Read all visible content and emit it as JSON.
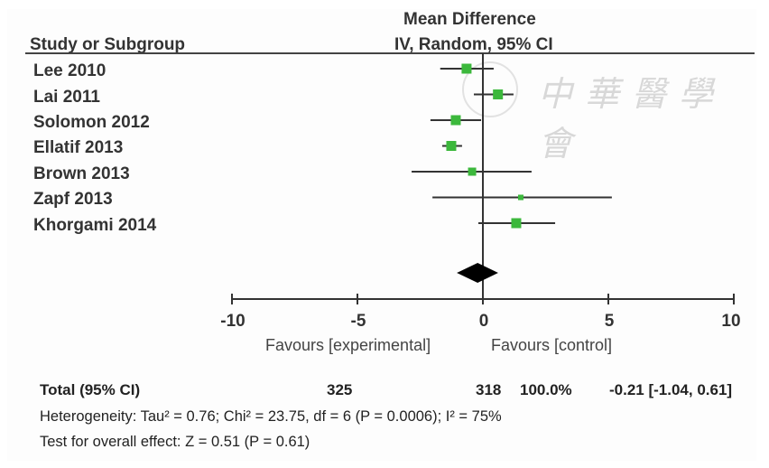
{
  "chart_data": {
    "type": "forest",
    "title": "Mean Difference",
    "subtitle": "IV, Random, 95% CI",
    "column_header_study": "Study or Subgroup",
    "xlim": [
      -10,
      10
    ],
    "x_ticks": [
      -10,
      -5,
      0,
      5,
      10
    ],
    "x_tick_labels": [
      "-10",
      "-5",
      "0",
      "5",
      "10"
    ],
    "xlabel_left": "Favours [experimental]",
    "xlabel_right": "Favours [control]",
    "studies": [
      {
        "name": "Lee 2010",
        "md": -0.65,
        "ci_low": -1.7,
        "ci_high": 0.43,
        "weight_marker": "medium"
      },
      {
        "name": "Lai 2011",
        "md": 0.6,
        "ci_low": -0.36,
        "ci_high": 1.22,
        "weight_marker": "medium"
      },
      {
        "name": "Solomon 2012",
        "md": -1.08,
        "ci_low": -2.09,
        "ci_high": -0.07,
        "weight_marker": "medium"
      },
      {
        "name": "Ellatif 2013",
        "md": -1.26,
        "ci_low": -1.62,
        "ci_high": -0.83,
        "weight_marker": "medium"
      },
      {
        "name": "Brown 2013",
        "md": -0.43,
        "ci_low": -2.84,
        "ci_high": 1.94,
        "weight_marker": "small"
      },
      {
        "name": "Zapf 2013",
        "md": 1.51,
        "ci_low": -2.01,
        "ci_high": 5.14,
        "weight_marker": "tiny"
      },
      {
        "name": "Khorgami 2014",
        "md": 1.33,
        "ci_low": -0.18,
        "ci_high": 2.88,
        "weight_marker": "medium"
      }
    ],
    "pooled": {
      "md": -0.21,
      "ci_low": -1.04,
      "ci_high": 0.61
    },
    "colors": {
      "marker": "#3cb83c",
      "line": "#333333",
      "diamond": "#000000"
    }
  },
  "summary": {
    "total_label": "Total (95% CI)",
    "total_experimental": "325",
    "total_control": "318",
    "total_weight": "100.0%",
    "total_effect": "-0.21 [-1.04, 0.61]",
    "heterogeneity": "Heterogeneity: Tau² = 0.76; Chi² = 23.75, df = 6 (P = 0.0006); I² = 75%",
    "overall_effect": "Test for overall effect: Z = 0.51 (P = 0.61)"
  },
  "watermark": {
    "text": "中華醫學會"
  }
}
